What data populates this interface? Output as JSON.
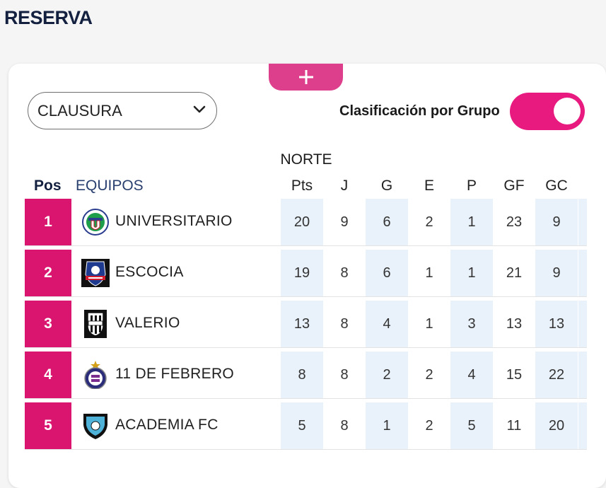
{
  "section": {
    "title": "RESERVA"
  },
  "controls": {
    "add_symbol": "+",
    "tournament_select": {
      "value": "CLAUSURA"
    },
    "group_toggle": {
      "label": "Clasificación por Grupo",
      "on": true
    }
  },
  "standings": {
    "group_name": "NORTE",
    "headers": {
      "pos": "Pos",
      "team": "EQUIPOS",
      "pts": "Pts",
      "j": "J",
      "g": "G",
      "e": "E",
      "p": "P",
      "gf": "GF",
      "gc": "GC"
    },
    "rows": [
      {
        "pos": "1",
        "team": "UNIVERSITARIO",
        "logo": "universitario-crest",
        "pts": "20",
        "j": "9",
        "g": "6",
        "e": "2",
        "p": "1",
        "gf": "23",
        "gc": "9"
      },
      {
        "pos": "2",
        "team": "ESCOCIA",
        "logo": "escocia-crest",
        "pts": "19",
        "j": "8",
        "g": "6",
        "e": "1",
        "p": "1",
        "gf": "21",
        "gc": "9"
      },
      {
        "pos": "3",
        "team": "VALERIO",
        "logo": "valerio-crest",
        "pts": "13",
        "j": "8",
        "g": "4",
        "e": "1",
        "p": "3",
        "gf": "13",
        "gc": "13"
      },
      {
        "pos": "4",
        "team": "11 DE FEBRERO",
        "logo": "once-de-febrero-crest",
        "pts": "8",
        "j": "8",
        "g": "2",
        "e": "2",
        "p": "4",
        "gf": "15",
        "gc": "22"
      },
      {
        "pos": "5",
        "team": "ACADEMIA FC",
        "logo": "academia-fc-crest",
        "pts": "5",
        "j": "8",
        "g": "1",
        "e": "2",
        "p": "5",
        "gf": "11",
        "gc": "20"
      }
    ]
  },
  "colors": {
    "accent": "#d9156f",
    "toggle": "#e8197f",
    "add_tab": "#dd3f8c",
    "stat_shade": "#e9f2fa",
    "title": "#13203f"
  }
}
